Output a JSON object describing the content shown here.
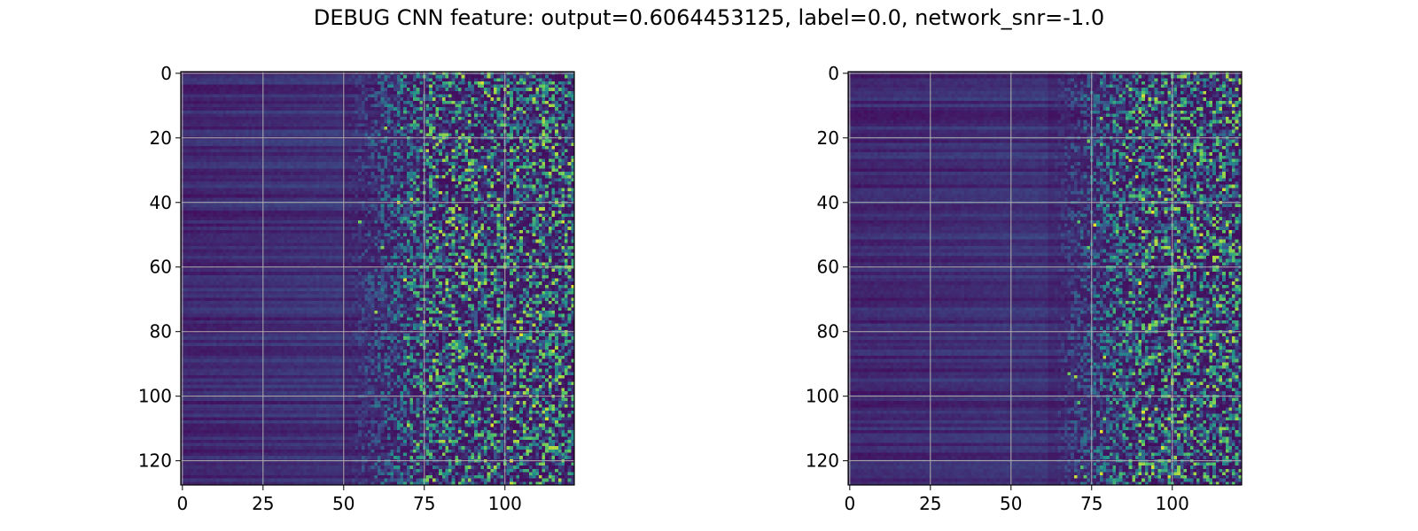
{
  "figure": {
    "title": "DEBUG CNN feature: output=0.6064453125, label=0.0, network_snr=-1.0"
  },
  "chart_data": [
    {
      "type": "heatmap",
      "title": "",
      "xlabel": "",
      "ylabel": "",
      "rows": 128,
      "cols": 122,
      "xlim": [
        -0.5,
        121.5
      ],
      "ylim": [
        127.5,
        -0.5
      ],
      "xticks": [
        0,
        25,
        50,
        75,
        100
      ],
      "yticks": [
        0,
        20,
        40,
        60,
        80,
        100,
        120
      ],
      "grid": true,
      "colormap": "viridis",
      "colors": [
        "#440154",
        "#3b528b",
        "#21918c",
        "#5ec962",
        "#fde725"
      ],
      "noise_onset_col": 50,
      "hotspots": [
        [
          104,
          77
        ],
        [
          101,
          99
        ],
        [
          102,
          120
        ],
        [
          94,
          29
        ],
        [
          88,
          57
        ]
      ]
    },
    {
      "type": "heatmap",
      "title": "",
      "xlabel": "",
      "ylabel": "",
      "rows": 128,
      "cols": 122,
      "xlim": [
        -0.5,
        121.5
      ],
      "ylim": [
        127.5,
        -0.5
      ],
      "xticks": [
        0,
        25,
        50,
        75,
        100
      ],
      "yticks": [
        0,
        20,
        40,
        60,
        80,
        100,
        120
      ],
      "grid": true,
      "colormap": "viridis",
      "colors": [
        "#440154",
        "#3b528b",
        "#21918c",
        "#5ec962",
        "#fde725"
      ],
      "noise_onset_col": 62,
      "hotspots": [
        [
          90,
          65
        ],
        [
          87,
          27
        ],
        [
          76,
          47
        ],
        [
          94,
          43
        ],
        [
          78,
          111
        ]
      ]
    }
  ]
}
